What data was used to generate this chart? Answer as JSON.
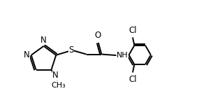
{
  "bg_color": "#ffffff",
  "line_color": "#000000",
  "text_color": "#000000",
  "lw": 1.4,
  "fs": 8.5,
  "xlim": [
    0.0,
    10.5
  ],
  "ylim": [
    0.5,
    5.5
  ]
}
